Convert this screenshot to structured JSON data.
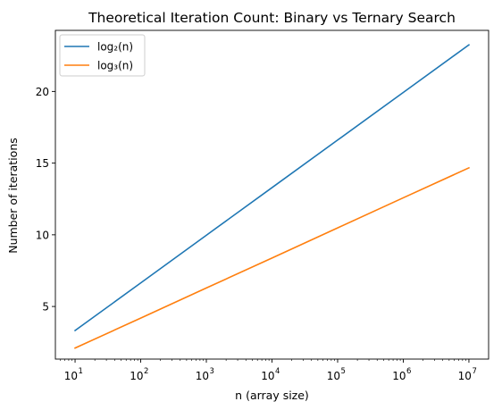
{
  "chart_data": {
    "type": "line",
    "title": "Theoretical Iteration Count: Binary vs Ternary Search",
    "xlabel": "n (array size)",
    "ylabel": "Number of iterations",
    "xscale": "log",
    "xlim": [
      10,
      10000000
    ],
    "ylim": [
      1.33,
      24.26
    ],
    "x_ticks": [
      {
        "value": 10,
        "base": "10",
        "exp": "1"
      },
      {
        "value": 100,
        "base": "10",
        "exp": "2"
      },
      {
        "value": 1000,
        "base": "10",
        "exp": "3"
      },
      {
        "value": 10000,
        "base": "10",
        "exp": "4"
      },
      {
        "value": 100000,
        "base": "10",
        "exp": "5"
      },
      {
        "value": 1000000,
        "base": "10",
        "exp": "6"
      },
      {
        "value": 10000000,
        "base": "10",
        "exp": "7"
      }
    ],
    "y_ticks": [
      5,
      10,
      15,
      20
    ],
    "legend_position": "top-left",
    "grid": false,
    "series": [
      {
        "name": "log₂(n)",
        "color": "#1f77b4",
        "x": [
          10,
          100,
          1000,
          10000,
          100000,
          1000000,
          10000000
        ],
        "values": [
          3.32,
          6.64,
          9.97,
          13.29,
          16.61,
          19.93,
          23.25
        ]
      },
      {
        "name": "log₃(n)",
        "color": "#ff7f0e",
        "x": [
          10,
          100,
          1000,
          10000,
          100000,
          1000000,
          10000000
        ],
        "values": [
          2.1,
          4.19,
          6.29,
          8.38,
          10.48,
          12.58,
          14.67
        ]
      }
    ]
  }
}
